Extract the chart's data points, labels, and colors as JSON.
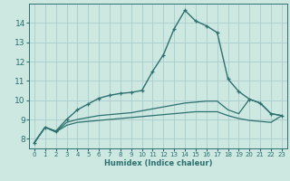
{
  "bg_color": "#cce8e0",
  "grid_color": "#aacccc",
  "line_color": "#2d7070",
  "xlabel": "Humidex (Indice chaleur)",
  "xlim": [
    -0.5,
    23.5
  ],
  "ylim": [
    7.5,
    15.0
  ],
  "yticks": [
    8,
    9,
    10,
    11,
    12,
    13,
    14
  ],
  "xticks": [
    0,
    1,
    2,
    3,
    4,
    5,
    6,
    7,
    8,
    9,
    10,
    11,
    12,
    13,
    14,
    15,
    16,
    17,
    18,
    19,
    20,
    21,
    22,
    23
  ],
  "line1_x": [
    0,
    1,
    2,
    3,
    4,
    5,
    6,
    7,
    8,
    9,
    10,
    11,
    12,
    13,
    14,
    15,
    16,
    17,
    18,
    19,
    20,
    21,
    22,
    23
  ],
  "line1_y": [
    7.8,
    8.6,
    8.4,
    9.0,
    9.5,
    9.8,
    10.1,
    10.25,
    10.35,
    10.4,
    10.5,
    11.5,
    12.35,
    13.7,
    14.65,
    14.1,
    13.85,
    13.5,
    11.1,
    10.45,
    10.05,
    9.85,
    9.3,
    9.2
  ],
  "line2_x": [
    0,
    1,
    2,
    3,
    4,
    5,
    6,
    7,
    8,
    9,
    10,
    11,
    12,
    13,
    14,
    15,
    16,
    17,
    18,
    19,
    20,
    21,
    22,
    23
  ],
  "line2_y": [
    7.8,
    8.6,
    8.35,
    8.85,
    9.0,
    9.1,
    9.2,
    9.25,
    9.3,
    9.35,
    9.45,
    9.55,
    9.65,
    9.75,
    9.85,
    9.9,
    9.95,
    9.95,
    9.5,
    9.3,
    10.05,
    9.85,
    9.3,
    9.2
  ],
  "line3_x": [
    0,
    1,
    2,
    3,
    4,
    5,
    6,
    7,
    8,
    9,
    10,
    11,
    12,
    13,
    14,
    15,
    16,
    17,
    18,
    19,
    20,
    21,
    22,
    23
  ],
  "line3_y": [
    7.8,
    8.6,
    8.35,
    8.7,
    8.85,
    8.9,
    8.95,
    9.0,
    9.05,
    9.1,
    9.15,
    9.2,
    9.25,
    9.3,
    9.35,
    9.4,
    9.4,
    9.4,
    9.2,
    9.05,
    8.95,
    8.9,
    8.85,
    9.2
  ]
}
